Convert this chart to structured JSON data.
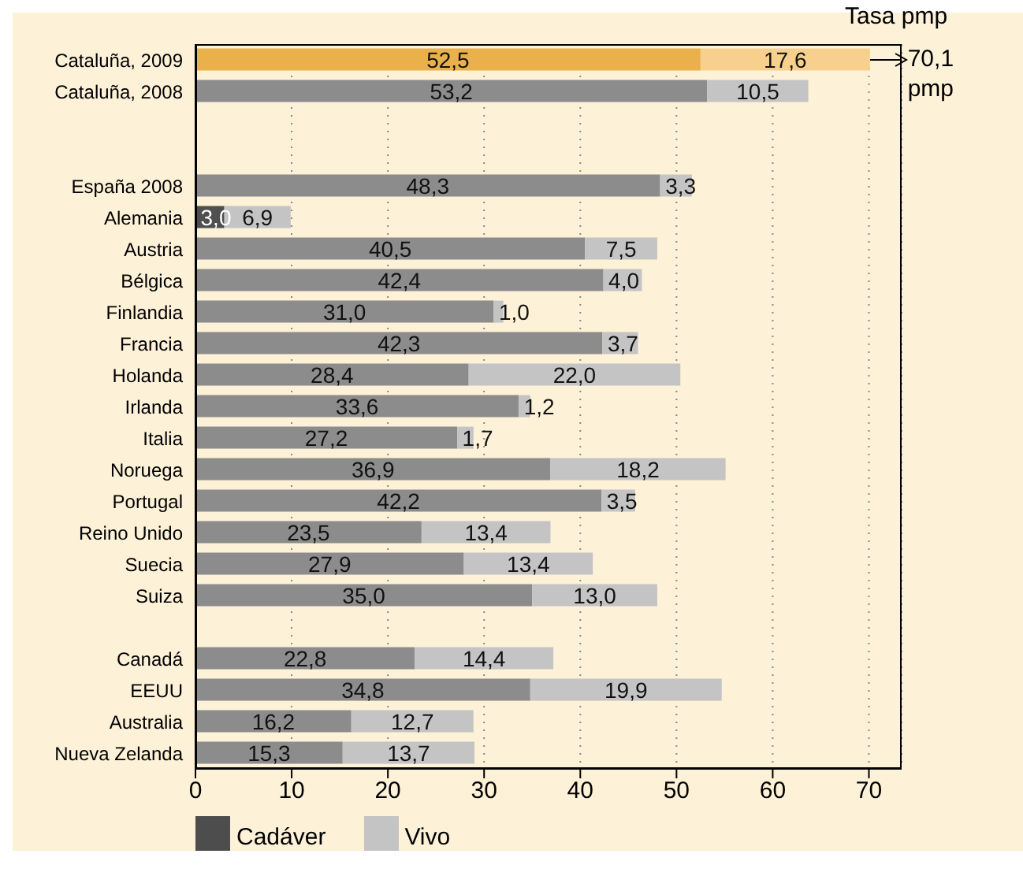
{
  "chart_data": {
    "type": "bar",
    "orientation": "horizontal",
    "stacked": true,
    "categories": [
      "Cataluña, 2009",
      "Cataluña, 2008",
      null,
      null,
      "España 2008",
      "Alemania",
      "Austria",
      "Bélgica",
      "Finlandia",
      "Francia",
      "Holanda",
      "Irlanda",
      "Italia",
      "Noruega",
      "Portugal",
      "Reino Unido",
      "Suecia",
      "Suiza",
      null,
      "Canadá",
      "EEUU",
      "Australia",
      "Nueva Zelanda"
    ],
    "series": [
      {
        "name": "Cadáver",
        "color": "#4d4d4d",
        "colors": [
          "#e9b04b",
          "#8c8c8c",
          "#8c8c8c",
          "#8c8c8c",
          "#8c8c8c",
          "#4f4f4f",
          "#8c8c8c",
          "#8c8c8c",
          "#8c8c8c",
          "#8c8c8c",
          "#8c8c8c",
          "#8c8c8c",
          "#8c8c8c",
          "#8c8c8c",
          "#8c8c8c",
          "#8c8c8c",
          "#8c8c8c",
          "#8c8c8c",
          "#8c8c8c",
          "#8c8c8c",
          "#8c8c8c",
          "#8c8c8c",
          "#8c8c8c"
        ],
        "values": [
          52.5,
          53.2,
          null,
          null,
          48.3,
          3.0,
          40.5,
          42.4,
          31.0,
          42.3,
          28.4,
          33.6,
          27.2,
          36.9,
          42.2,
          23.5,
          27.9,
          35.0,
          null,
          22.8,
          34.8,
          16.2,
          15.3
        ],
        "value_labels": [
          "52,5",
          "53,2",
          null,
          null,
          "48,3",
          "3,0",
          "40,5",
          "42,4",
          "31,0",
          "42,3",
          "28,4",
          "33,6",
          "27,2",
          "36,9",
          "42,2",
          "23,5",
          "27,9",
          "35,0",
          null,
          "22,8",
          "34,8",
          "16,2",
          "15,3"
        ]
      },
      {
        "name": "Vivo",
        "color": "#c4c4c4",
        "colors": [
          "#f7d08e",
          "#c4c4c4",
          "#c4c4c4",
          "#c4c4c4",
          "#c4c4c4",
          "#c4c4c4",
          "#c4c4c4",
          "#c4c4c4",
          "#c4c4c4",
          "#c4c4c4",
          "#c4c4c4",
          "#c4c4c4",
          "#c4c4c4",
          "#c4c4c4",
          "#c4c4c4",
          "#c4c4c4",
          "#c4c4c4",
          "#c4c4c4",
          "#c4c4c4",
          "#c4c4c4",
          "#c4c4c4",
          "#c4c4c4",
          "#c4c4c4"
        ],
        "values": [
          17.6,
          10.5,
          null,
          null,
          3.3,
          6.9,
          7.5,
          4.0,
          1.0,
          3.7,
          22.0,
          1.2,
          1.7,
          18.2,
          3.5,
          13.4,
          13.4,
          13.0,
          null,
          14.4,
          19.9,
          12.7,
          13.7
        ],
        "value_labels": [
          "17,6",
          "10,5",
          null,
          null,
          "3,3",
          "6,9",
          "7,5",
          "4,0",
          "1,0",
          "3,7",
          "22,0",
          "1,2",
          "1,7",
          "18,2",
          "3,5",
          "13,4",
          "13,4",
          "13,0",
          null,
          "14,4",
          "19,9",
          "12,7",
          "13,7"
        ]
      }
    ],
    "xlim": [
      0,
      73.4
    ],
    "xticks": [
      0,
      10,
      20,
      30,
      40,
      50,
      60,
      70
    ],
    "grid": "x",
    "legend": "bottom",
    "annotations": [
      "Tasa pmp",
      {
        "text": "70,1 pmp",
        "x": 70.1,
        "y": "Cataluña, 2009"
      }
    ]
  }
}
